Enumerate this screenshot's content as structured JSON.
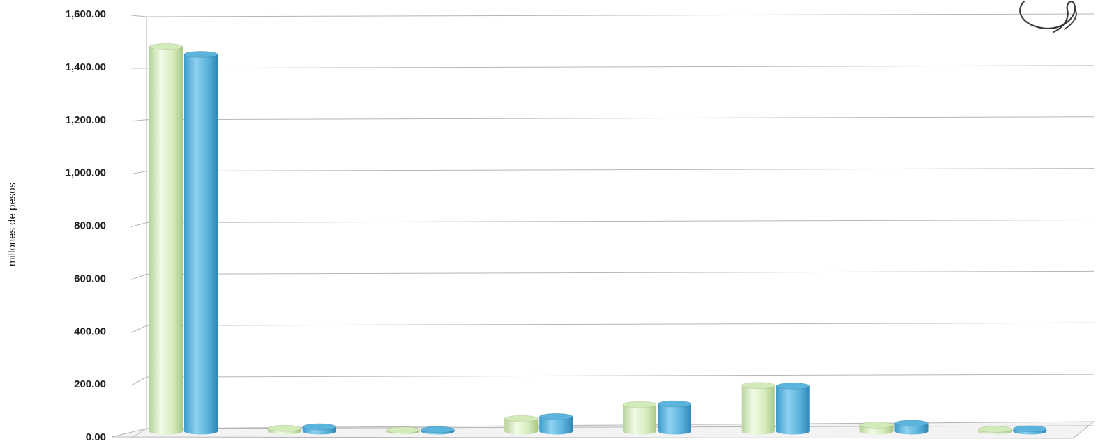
{
  "chart_data": {
    "type": "bar",
    "style": "3d-cylinder",
    "categories": [
      "",
      "",
      "",
      "",
      "",
      "",
      "",
      ""
    ],
    "series": [
      {
        "values": [
          1510,
          12,
          5,
          50,
          105,
          180,
          25,
          8
        ]
      },
      {
        "values": [
          1480,
          18,
          7,
          58,
          108,
          178,
          32,
          10
        ]
      }
    ],
    "colors": {
      "series": [
        "#d3ebb8",
        "#5bb4dd"
      ],
      "grid": "#b5b5b5",
      "text": "#222222"
    },
    "ylabel": "millones de pesos",
    "ylim": [
      0,
      1600
    ],
    "yticks": [
      "0.00",
      "200.00",
      "400.00",
      "600.00",
      "800.00",
      "1,000.00",
      "1,200.00",
      "1,400.00",
      "1,600.00"
    ],
    "grid": true,
    "legend": "none"
  }
}
